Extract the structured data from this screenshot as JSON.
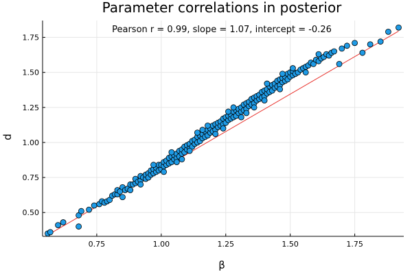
{
  "chart_data": {
    "type": "scatter",
    "title": "Parameter correlations in posterior",
    "annotation": "Pearson r = 0.99, slope = 1.07, intercept = -0.26",
    "xlabel": "β",
    "ylabel": "d",
    "xlim": [
      0.54,
      1.94
    ],
    "ylim": [
      0.33,
      1.87
    ],
    "xticks": [
      0.75,
      1.0,
      1.25,
      1.5,
      1.75
    ],
    "xtick_labels": [
      "0.75",
      "1.00",
      "1.25",
      "1.50",
      "1.75"
    ],
    "yticks": [
      0.5,
      0.75,
      1.0,
      1.25,
      1.5,
      1.75
    ],
    "ytick_labels": [
      "0.50",
      "0.75",
      "1.00",
      "1.25",
      "1.50",
      "1.75"
    ],
    "grid": true,
    "legend": "none",
    "marker_color": "#1f9be6",
    "marker_edge_color": "#000000",
    "fit_line_color": "#e8302a",
    "fit": {
      "slope": 1.07,
      "intercept": -0.26,
      "x_range": [
        0.56,
        1.92
      ]
    },
    "series": [
      {
        "points": [
          [
            0.56,
            0.35
          ],
          [
            0.57,
            0.36
          ],
          [
            0.6,
            0.41
          ],
          [
            0.62,
            0.43
          ],
          [
            0.68,
            0.48
          ],
          [
            0.68,
            0.4
          ],
          [
            0.69,
            0.51
          ],
          [
            0.72,
            0.52
          ],
          [
            0.74,
            0.55
          ],
          [
            0.76,
            0.56
          ],
          [
            0.77,
            0.58
          ],
          [
            0.78,
            0.57
          ],
          [
            0.79,
            0.58
          ],
          [
            0.8,
            0.59
          ],
          [
            0.81,
            0.62
          ],
          [
            0.82,
            0.63
          ],
          [
            0.83,
            0.63
          ],
          [
            0.83,
            0.66
          ],
          [
            0.84,
            0.65
          ],
          [
            0.85,
            0.68
          ],
          [
            0.85,
            0.61
          ],
          [
            0.86,
            0.66
          ],
          [
            0.87,
            0.67
          ],
          [
            0.88,
            0.7
          ],
          [
            0.88,
            0.66
          ],
          [
            0.89,
            0.7
          ],
          [
            0.9,
            0.71
          ],
          [
            0.9,
            0.74
          ],
          [
            0.91,
            0.72
          ],
          [
            0.92,
            0.73
          ],
          [
            0.92,
            0.76
          ],
          [
            0.93,
            0.75
          ],
          [
            0.94,
            0.74
          ],
          [
            0.94,
            0.77
          ],
          [
            0.95,
            0.78
          ],
          [
            0.95,
            0.75
          ],
          [
            0.96,
            0.77
          ],
          [
            0.96,
            0.8
          ],
          [
            0.97,
            0.78
          ],
          [
            0.97,
            0.81
          ],
          [
            0.98,
            0.79
          ],
          [
            0.98,
            0.82
          ],
          [
            0.99,
            0.8
          ],
          [
            0.99,
            0.84
          ],
          [
            1.0,
            0.81
          ],
          [
            1.0,
            0.84
          ],
          [
            1.01,
            0.83
          ],
          [
            1.01,
            0.86
          ],
          [
            1.02,
            0.84
          ],
          [
            1.02,
            0.87
          ],
          [
            1.03,
            0.85
          ],
          [
            1.03,
            0.89
          ],
          [
            1.04,
            0.86
          ],
          [
            1.04,
            0.9
          ],
          [
            1.05,
            0.88
          ],
          [
            1.05,
            0.91
          ],
          [
            1.06,
            0.89
          ],
          [
            1.06,
            0.92
          ],
          [
            1.07,
            0.9
          ],
          [
            1.07,
            0.94
          ],
          [
            1.08,
            0.92
          ],
          [
            1.08,
            0.95
          ],
          [
            1.09,
            0.93
          ],
          [
            1.09,
            0.97
          ],
          [
            1.1,
            0.95
          ],
          [
            1.1,
            0.98
          ],
          [
            1.11,
            0.96
          ],
          [
            1.11,
            0.99
          ],
          [
            1.12,
            0.97
          ],
          [
            1.12,
            1.01
          ],
          [
            1.13,
            0.99
          ],
          [
            1.13,
            1.02
          ],
          [
            1.14,
            1.0
          ],
          [
            1.14,
            1.04
          ],
          [
            1.15,
            1.01
          ],
          [
            1.15,
            1.05
          ],
          [
            1.16,
            1.03
          ],
          [
            1.16,
            1.06
          ],
          [
            1.17,
            1.04
          ],
          [
            1.17,
            1.08
          ],
          [
            1.18,
            1.05
          ],
          [
            1.18,
            1.09
          ],
          [
            1.19,
            1.07
          ],
          [
            1.19,
            1.1
          ],
          [
            1.2,
            1.08
          ],
          [
            1.2,
            1.12
          ],
          [
            1.21,
            1.09
          ],
          [
            1.21,
            1.13
          ],
          [
            1.22,
            1.11
          ],
          [
            1.22,
            1.14
          ],
          [
            1.23,
            1.12
          ],
          [
            1.23,
            1.15
          ],
          [
            1.24,
            1.13
          ],
          [
            1.24,
            1.17
          ],
          [
            1.25,
            1.14
          ],
          [
            1.25,
            1.18
          ],
          [
            1.26,
            1.16
          ],
          [
            1.26,
            1.19
          ],
          [
            1.27,
            1.17
          ],
          [
            1.27,
            1.2
          ],
          [
            1.28,
            1.18
          ],
          [
            1.28,
            1.22
          ],
          [
            1.29,
            1.19
          ],
          [
            1.29,
            1.23
          ],
          [
            1.3,
            1.21
          ],
          [
            1.3,
            1.24
          ],
          [
            1.31,
            1.22
          ],
          [
            1.31,
            1.25
          ],
          [
            1.32,
            1.23
          ],
          [
            1.32,
            1.27
          ],
          [
            1.33,
            1.24
          ],
          [
            1.33,
            1.28
          ],
          [
            1.34,
            1.26
          ],
          [
            1.34,
            1.29
          ],
          [
            1.35,
            1.27
          ],
          [
            1.35,
            1.31
          ],
          [
            1.36,
            1.28
          ],
          [
            1.36,
            1.32
          ],
          [
            1.37,
            1.3
          ],
          [
            1.37,
            1.33
          ],
          [
            1.38,
            1.31
          ],
          [
            1.38,
            1.34
          ],
          [
            1.39,
            1.32
          ],
          [
            1.39,
            1.36
          ],
          [
            1.4,
            1.33
          ],
          [
            1.4,
            1.37
          ],
          [
            1.41,
            1.35
          ],
          [
            1.41,
            1.38
          ],
          [
            1.42,
            1.36
          ],
          [
            1.42,
            1.4
          ],
          [
            1.43,
            1.37
          ],
          [
            1.43,
            1.41
          ],
          [
            1.44,
            1.39
          ],
          [
            1.44,
            1.42
          ],
          [
            1.45,
            1.4
          ],
          [
            1.45,
            1.44
          ],
          [
            1.46,
            1.41
          ],
          [
            1.46,
            1.45
          ],
          [
            1.47,
            1.43
          ],
          [
            1.47,
            1.46
          ],
          [
            1.48,
            1.44
          ],
          [
            1.48,
            1.47
          ],
          [
            1.49,
            1.45
          ],
          [
            1.49,
            1.49
          ],
          [
            1.5,
            1.47
          ],
          [
            1.5,
            1.5
          ],
          [
            1.51,
            1.48
          ],
          [
            1.51,
            1.51
          ],
          [
            1.52,
            1.49
          ],
          [
            1.53,
            1.5
          ],
          [
            1.54,
            1.52
          ],
          [
            1.55,
            1.53
          ],
          [
            1.56,
            1.54
          ],
          [
            1.57,
            1.55
          ],
          [
            1.58,
            1.57
          ],
          [
            1.59,
            1.56
          ],
          [
            1.6,
            1.59
          ],
          [
            1.61,
            1.58
          ],
          [
            1.62,
            1.6
          ],
          [
            1.63,
            1.61
          ],
          [
            1.64,
            1.63
          ],
          [
            1.65,
            1.62
          ],
          [
            1.66,
            1.64
          ],
          [
            1.67,
            1.65
          ],
          [
            1.69,
            1.56
          ],
          [
            1.7,
            1.67
          ],
          [
            1.72,
            1.69
          ],
          [
            1.75,
            1.71
          ],
          [
            1.78,
            1.64
          ],
          [
            1.81,
            1.7
          ],
          [
            1.85,
            1.72
          ],
          [
            1.88,
            1.79
          ],
          [
            1.92,
            1.82
          ],
          [
            0.92,
            0.7
          ],
          [
            0.97,
            0.84
          ],
          [
            1.01,
            0.79
          ],
          [
            1.06,
            0.86
          ],
          [
            1.11,
            0.94
          ],
          [
            1.16,
            1.09
          ],
          [
            1.21,
            1.06
          ],
          [
            1.26,
            1.22
          ],
          [
            1.31,
            1.18
          ],
          [
            1.36,
            1.25
          ],
          [
            1.41,
            1.42
          ],
          [
            1.46,
            1.38
          ],
          [
            1.51,
            1.53
          ],
          [
            1.56,
            1.5
          ],
          [
            1.61,
            1.63
          ],
          [
            1.4,
            1.3
          ],
          [
            1.18,
            1.12
          ],
          [
            1.08,
            0.88
          ],
          [
            1.28,
            1.25
          ],
          [
            1.33,
            1.21
          ],
          [
            1.24,
            1.1
          ],
          [
            1.14,
            1.07
          ],
          [
            1.04,
            0.93
          ],
          [
            1.47,
            1.49
          ]
        ]
      }
    ]
  }
}
